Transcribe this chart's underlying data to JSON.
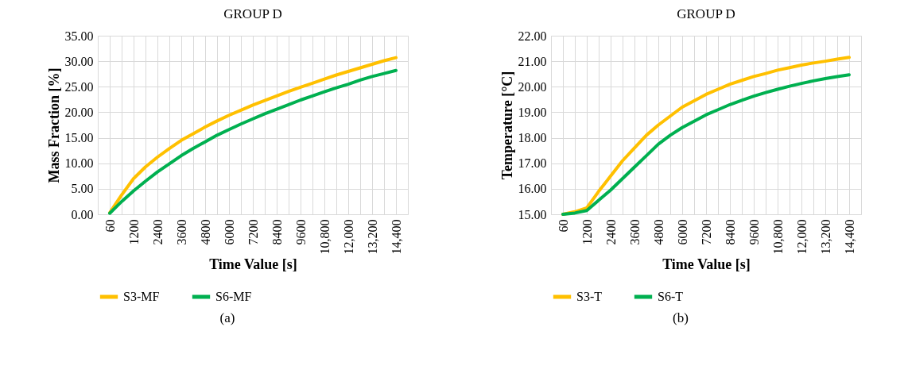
{
  "chart_data": [
    {
      "type": "line",
      "title": "GROUP D",
      "xlabel": "Time Value [s]",
      "ylabel": "Mass Fraction [%]",
      "categories": [
        "60",
        null,
        "1200",
        null,
        "2400",
        null,
        "3600",
        null,
        "4800",
        null,
        "6000",
        null,
        "7200",
        null,
        "8400",
        null,
        "9600",
        null,
        "10,800",
        null,
        "12,000",
        null,
        "13,200",
        null,
        "14,400"
      ],
      "series": [
        {
          "name": "S3-MF",
          "color": "#ffc000",
          "values": [
            0.3,
            3.8,
            7.0,
            9.3,
            11.2,
            12.9,
            14.5,
            15.8,
            17.1,
            18.3,
            19.4,
            20.4,
            21.4,
            22.3,
            23.2,
            24.1,
            24.9,
            25.7,
            26.5,
            27.3,
            28.0,
            28.7,
            29.4,
            30.1,
            30.7
          ]
        },
        {
          "name": "S6-MF",
          "color": "#00b050",
          "values": [
            0.2,
            2.5,
            4.6,
            6.5,
            8.3,
            9.9,
            11.5,
            12.9,
            14.2,
            15.5,
            16.6,
            17.7,
            18.7,
            19.7,
            20.6,
            21.5,
            22.4,
            23.2,
            24.0,
            24.8,
            25.5,
            26.3,
            27.0,
            27.6,
            28.2
          ]
        }
      ],
      "ylim": [
        0,
        35
      ],
      "yticks": [
        {
          "value": 0,
          "label": "0.00"
        },
        {
          "value": 5,
          "label": "5.00"
        },
        {
          "value": 10,
          "label": "10.00"
        },
        {
          "value": 15,
          "label": "15.00"
        },
        {
          "value": 20,
          "label": "20.00"
        },
        {
          "value": 25,
          "label": "25.00"
        },
        {
          "value": 30,
          "label": "30.00"
        },
        {
          "value": 35,
          "label": "35.00"
        }
      ],
      "grid": true,
      "legend": "bottom",
      "line_style": "solid",
      "marker": "none",
      "annotations": [
        "(a)"
      ]
    },
    {
      "type": "line",
      "title": "GROUP D",
      "xlabel": "Time Value [s]",
      "ylabel": "Temperature [°C]",
      "categories": [
        "60",
        null,
        "1200",
        null,
        "2400",
        null,
        "3600",
        null,
        "4800",
        null,
        "6000",
        null,
        "7200",
        null,
        "8400",
        null,
        "9600",
        null,
        "10,800",
        null,
        "12,000",
        null,
        "13,200",
        null,
        "14,400"
      ],
      "series": [
        {
          "name": "S3-T",
          "color": "#ffc000",
          "values": [
            15.0,
            15.1,
            15.25,
            15.9,
            16.5,
            17.1,
            17.6,
            18.1,
            18.5,
            18.85,
            19.2,
            19.45,
            19.7,
            19.9,
            20.1,
            20.25,
            20.4,
            20.52,
            20.65,
            20.75,
            20.85,
            20.93,
            21.0,
            21.08,
            21.15
          ]
        },
        {
          "name": "S6-T",
          "color": "#00b050",
          "values": [
            15.0,
            15.05,
            15.15,
            15.55,
            15.95,
            16.4,
            16.85,
            17.3,
            17.75,
            18.1,
            18.4,
            18.65,
            18.9,
            19.1,
            19.3,
            19.47,
            19.63,
            19.77,
            19.9,
            20.02,
            20.13,
            20.23,
            20.32,
            20.4,
            20.47
          ]
        }
      ],
      "ylim": [
        15,
        22
      ],
      "yticks": [
        {
          "value": 15,
          "label": "15.00"
        },
        {
          "value": 16,
          "label": "16.00"
        },
        {
          "value": 17,
          "label": "17.00"
        },
        {
          "value": 18,
          "label": "18.00"
        },
        {
          "value": 19,
          "label": "19.00"
        },
        {
          "value": 20,
          "label": "20.00"
        },
        {
          "value": 21,
          "label": "21.00"
        },
        {
          "value": 22,
          "label": "22.00"
        }
      ],
      "grid": true,
      "legend": "bottom",
      "line_style": "solid",
      "marker": "none",
      "annotations": [
        "(b)"
      ]
    }
  ]
}
